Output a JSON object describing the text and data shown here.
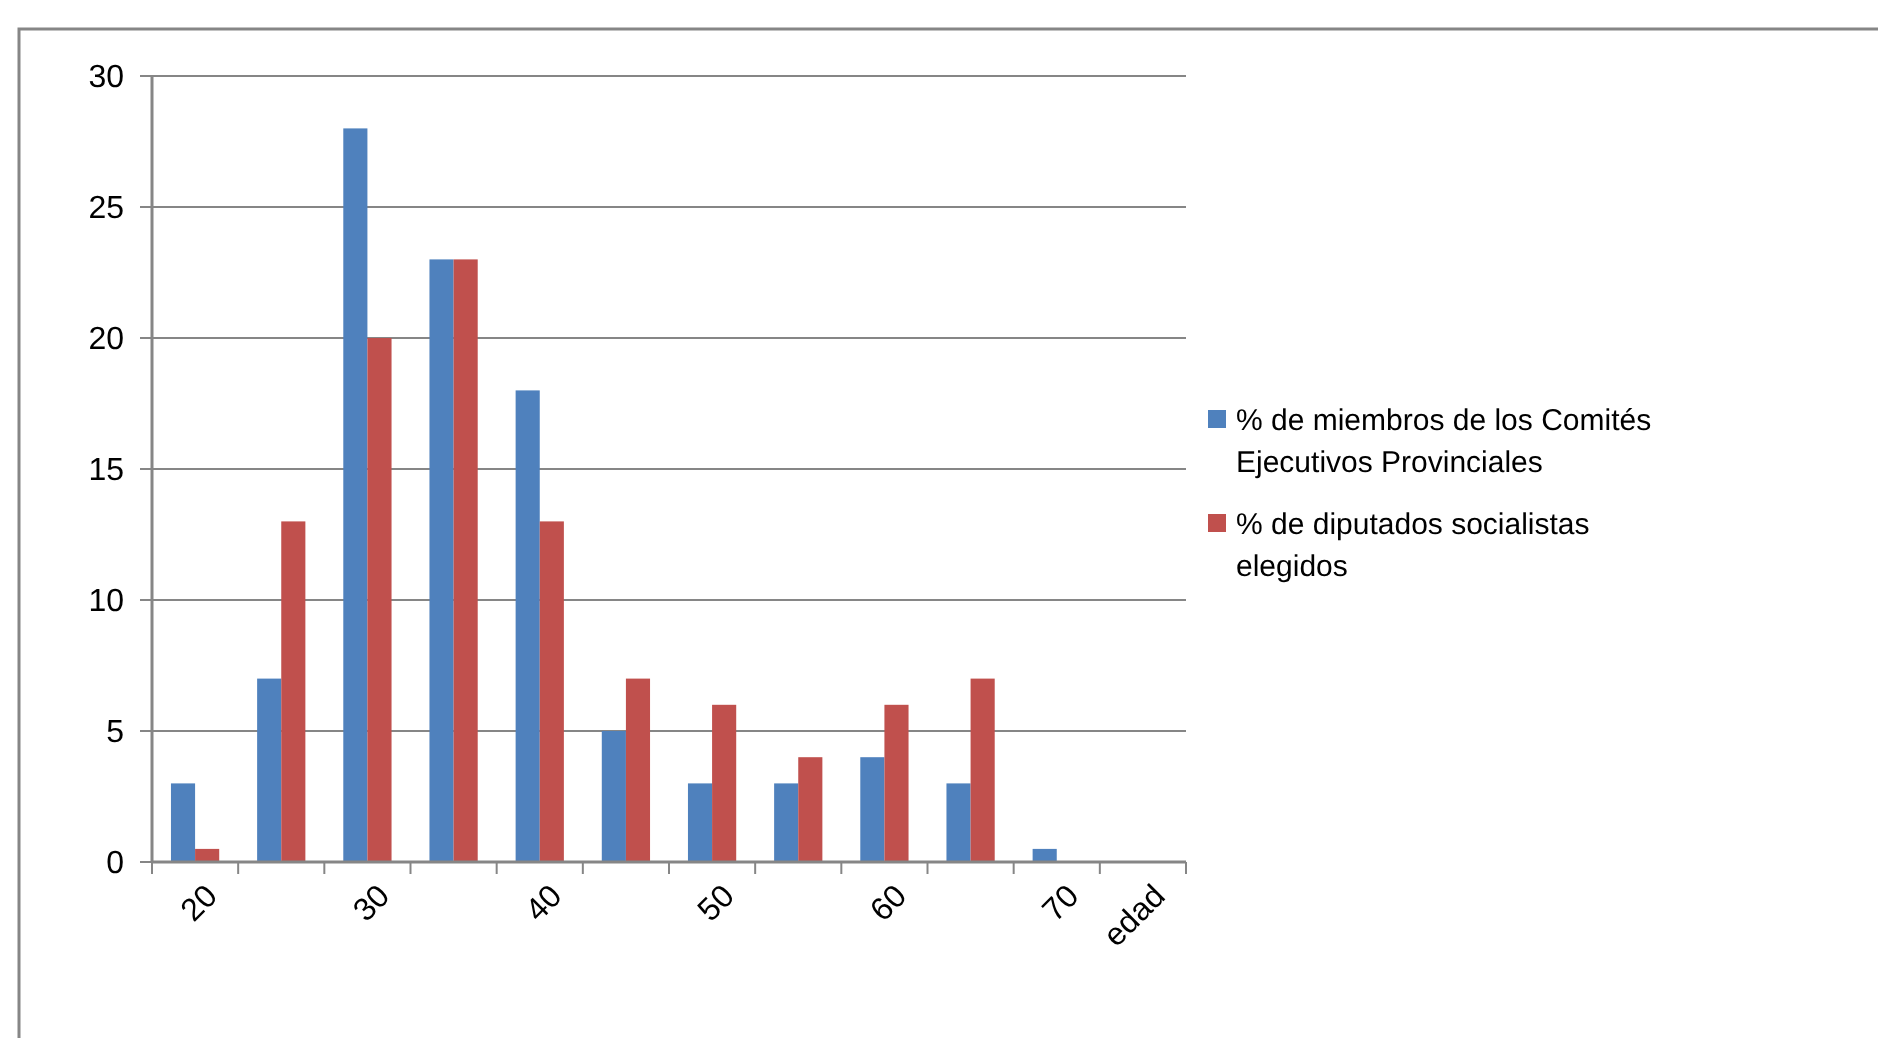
{
  "chart_data": {
    "type": "bar",
    "categories": [
      "20",
      null,
      "30",
      null,
      "40",
      null,
      "50",
      null,
      "60",
      null,
      "70",
      "edad"
    ],
    "series": [
      {
        "name": "% de miembros de los Comités Ejecutivos Provinciales",
        "color": "#4f81bd",
        "values": [
          3,
          7,
          28,
          23,
          18,
          5,
          3,
          3,
          4,
          3,
          0.5,
          0
        ]
      },
      {
        "name": "% de diputados socialistas elegidos",
        "color": "#c0504d",
        "values": [
          0.5,
          13,
          20,
          23,
          13,
          7,
          6,
          4,
          6,
          7,
          0,
          0
        ]
      }
    ],
    "ylim": [
      0,
      30
    ],
    "yticks": [
      0,
      5,
      10,
      15,
      20,
      25,
      30
    ],
    "grid": "y",
    "legend": "right"
  }
}
